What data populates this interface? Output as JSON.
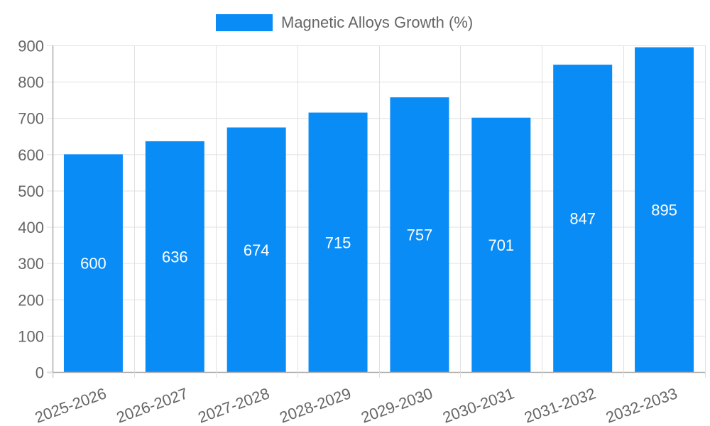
{
  "chart_data": {
    "type": "bar",
    "title": "",
    "categories": [
      "2025-2026",
      "2026-2027",
      "2027-2028",
      "2028-2029",
      "2029-2030",
      "2030-2031",
      "2031-2032",
      "2032-2033"
    ],
    "series": [
      {
        "name": "Magnetic Alloys Growth (%)",
        "values": [
          600,
          636,
          674,
          715,
          757,
          701,
          847,
          895
        ],
        "color": "#0a8cf7"
      }
    ],
    "xlabel": "",
    "ylabel": "",
    "ylim": [
      0,
      900
    ],
    "yticks": [
      0,
      100,
      200,
      300,
      400,
      500,
      600,
      700,
      800,
      900
    ],
    "grid": true,
    "legend_position": "top",
    "data_labels": true
  },
  "legend": {
    "label": "Magnetic Alloys Growth (%)"
  },
  "colors": {
    "bar": "#0a8cf7",
    "grid": "#e0e0e0",
    "axis": "#aaaaaa",
    "tick_text": "#666666",
    "data_label": "#ffffff"
  }
}
